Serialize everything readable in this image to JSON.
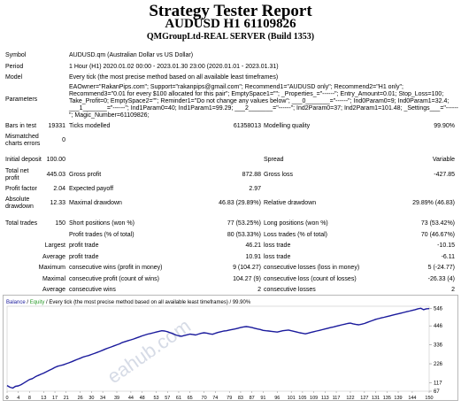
{
  "header": {
    "title": "Strategy Tester Report",
    "subtitle": "AUDUSD H1 61109826",
    "server": "QMGroupLtd-REAL SERVER (Build 1353)"
  },
  "info": {
    "symbol_label": "Symbol",
    "symbol_value": "AUDUSD.qm (Australian Dollar vs US Dollar)",
    "period_label": "Period",
    "period_value": "1 Hour (H1) 2020.01.02 00:00 - 2023.01.30 23:00 (2020.01.01 - 2023.01.31)",
    "model_label": "Model",
    "model_value": "Every tick (the most precise method based on all available least timeframes)",
    "params_label": "Parameters",
    "params_value": "EAOwner=\"RakanPips.com\"; Support=\"rakanpips@gmail.com\"; Recommend1=\"AUDUSD only\"; Recommend2=\"H1 only\"; Recommend3=\"0.01 for every $100 allocated for this pair\"; EmptySpace1=\"\"; _Properties_=\"------\"; Entry_Amount=0.01; Stop_Loss=100; Take_Profit=0; EmptySpace2=\"\"; Reminder1=\"Do not change any values below\"; ___0_______=\"------\"; Ind0Param0=9; Ind0Param1=32.4; ___1_______=\"------\"; Ind1Param0=40; Ind1Param1=99.29; ___2_______=\"------\"; Ind2Param0=37; Ind2Param1=101.48; _Settings___=\"------\"; Magic_Number=61109826;"
  },
  "stats": {
    "bars_label": "Bars in test",
    "bars_value": "19331",
    "ticks_label": "Ticks modelled",
    "ticks_value": "61358013",
    "quality_label": "Modelling quality",
    "quality_value": "99.90%",
    "mismatch_label": "Mismatched charts errors",
    "mismatch_value": "0",
    "deposit_label": "Initial deposit",
    "deposit_value": "100.00",
    "spread_label": "Spread",
    "spread_value": "Variable",
    "net_label": "Total net profit",
    "net_value": "445.03",
    "gross_profit_label": "Gross profit",
    "gross_profit_value": "872.88",
    "gross_loss_label": "Gross loss",
    "gross_loss_value": "-427.85",
    "pf_label": "Profit factor",
    "pf_value": "2.04",
    "payoff_label": "Expected payoff",
    "payoff_value": "2.97",
    "abs_dd_label": "Absolute drawdown",
    "abs_dd_value": "12.33",
    "max_dd_label": "Maximal drawdown",
    "max_dd_value": "46.83 (29.89%)",
    "rel_dd_label": "Relative drawdown",
    "rel_dd_value": "29.89% (46.83)",
    "trades_label": "Total trades",
    "trades_value": "150",
    "short_label": "Short positions (won %)",
    "short_value": "77 (53.25%)",
    "long_label": "Long positions (won %)",
    "long_value": "73 (53.42%)",
    "profit_trades_label": "Profit trades (% of total)",
    "profit_trades_value": "80 (53.33%)",
    "loss_trades_label": "Loss trades (% of total)",
    "loss_trades_value": "70 (46.67%)",
    "largest_label": "Largest",
    "largest_pt_label": "profit trade",
    "largest_pt_value": "46.21",
    "largest_lt_label": "loss trade",
    "largest_lt_value": "-10.15",
    "average_label": "Average",
    "average_pt_label": "profit trade",
    "average_pt_value": "10.91",
    "average_lt_label": "loss trade",
    "average_lt_value": "-6.11",
    "maximum_label": "Maximum",
    "max_cw_label": "consecutive wins (profit in money)",
    "max_cw_value": "9 (104.27)",
    "max_cl_label": "consecutive losses (loss in money)",
    "max_cl_value": "5 (-24.77)",
    "maximal_label": "Maximal",
    "maximal_cp_label": "consecutive profit (count of wins)",
    "maximal_cp_value": "104.27 (9)",
    "maximal_cl_label": "consecutive loss (count of losses)",
    "maximal_cl_value": "-26.33 (4)",
    "avg_label": "Average",
    "avg_cw_label": "consecutive wins",
    "avg_cw_value": "2",
    "avg_cl_label": "consecutive losses",
    "avg_cl_value": "2"
  },
  "chart_data": {
    "type": "line",
    "legend_balance": "Balance",
    "legend_sep": " / ",
    "legend_equity": "Equity",
    "legend_rest": " / Every tick (the most precise method based on all available least timeframes) / 99.90%",
    "watermark": "eahub.com",
    "x_ticks": [
      "0",
      "5",
      "10",
      "15",
      "19",
      "24",
      "29",
      "33",
      "38",
      "43",
      "48",
      "53",
      "57",
      "62",
      "67",
      "72",
      "77",
      "81",
      "86",
      "91",
      "96",
      "101",
      "105",
      "110",
      "115",
      "120",
      "125",
      "129",
      "134",
      "139",
      "144",
      "149",
      "154",
      "159",
      "163",
      "168",
      "173",
      "177",
      "182",
      "187",
      "192",
      "197",
      "201",
      "206",
      "211",
      "216",
      "221",
      "225",
      "230",
      "235",
      "240",
      "245",
      "249",
      "254",
      "259",
      "264",
      "269",
      "273",
      "278",
      "283",
      "288",
      "293",
      "297",
      "302",
      "307",
      "312",
      "317",
      "321",
      "326",
      "331",
      "336",
      "341",
      "345",
      "350",
      "355",
      "360",
      "365",
      "369",
      "374",
      "379",
      "384",
      "389",
      "393",
      "398",
      "403",
      "408",
      "413",
      "417",
      "422",
      "427",
      "432",
      "437",
      "441",
      "446",
      "451",
      "456",
      "461",
      "465",
      "470",
      "475",
      "480"
    ],
    "x_tick_labels": [
      "0",
      "4",
      "8",
      "13",
      "17",
      "21",
      "26",
      "30",
      "34",
      "39",
      "44",
      "48",
      "53",
      "57",
      "61",
      "65",
      "70",
      "74",
      "79",
      "83",
      "87",
      "91",
      "96",
      "101",
      "105",
      "109",
      "113",
      "117",
      "122",
      "127",
      "131",
      "135",
      "139",
      "144",
      "150"
    ],
    "y_ticks": [
      "546",
      "446",
      "336",
      "226",
      "117",
      "67"
    ],
    "ylim": [
      67,
      560
    ],
    "xlim": [
      0,
      150
    ],
    "balance_color": "#1a1a9c",
    "equity_color": "#2a9a2a",
    "y": [
      100,
      90,
      85,
      95,
      98,
      105,
      115,
      125,
      135,
      140,
      150,
      158,
      165,
      172,
      180,
      188,
      196,
      205,
      212,
      216,
      220,
      226,
      232,
      238,
      245,
      252,
      258,
      265,
      270,
      274,
      280,
      286,
      292,
      298,
      305,
      312,
      318,
      324,
      330,
      336,
      342,
      350,
      355,
      360,
      365,
      370,
      376,
      382,
      388,
      393,
      398,
      402,
      406,
      410,
      414,
      418,
      416,
      412,
      406,
      400,
      393,
      388,
      386,
      390,
      394,
      398,
      396,
      393,
      398,
      403,
      406,
      404,
      400,
      397,
      403,
      408,
      412,
      416,
      418,
      422,
      425,
      428,
      432,
      436,
      440,
      442,
      440,
      436,
      432,
      428,
      425,
      420,
      418,
      416,
      414,
      412,
      410,
      414,
      418,
      420,
      422,
      418,
      414,
      410,
      406,
      403,
      400,
      404,
      408,
      412,
      416,
      420,
      424,
      428,
      432,
      436,
      440,
      444,
      448,
      452,
      456,
      460,
      462,
      458,
      454,
      452,
      456,
      460,
      466,
      472,
      478,
      484,
      488,
      492,
      496,
      500,
      504,
      508,
      512,
      516,
      520,
      524,
      528,
      532,
      536,
      540,
      545,
      548,
      540,
      545,
      546
    ]
  }
}
